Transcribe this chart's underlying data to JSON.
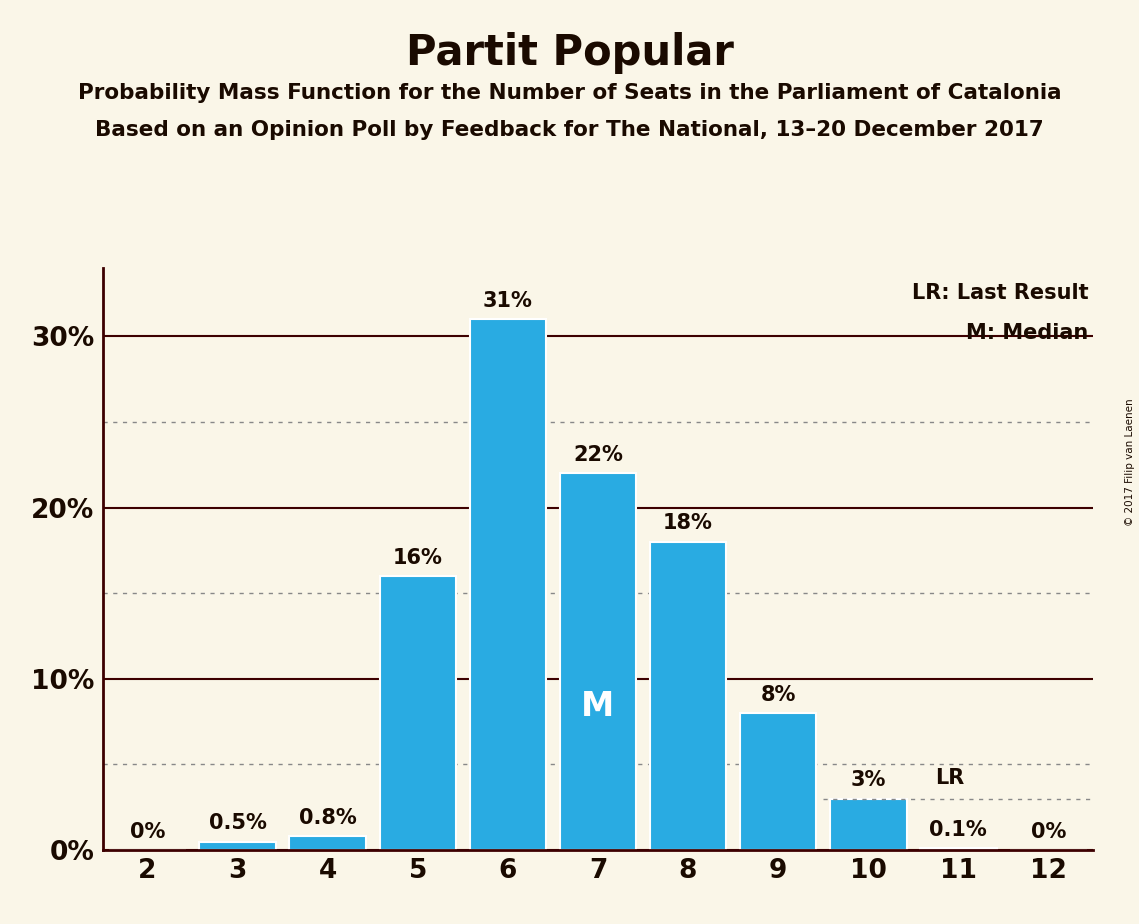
{
  "title": "Partit Popular",
  "subtitle1": "Probability Mass Function for the Number of Seats in the Parliament of Catalonia",
  "subtitle2": "Based on an Opinion Poll by Feedback for The National, 13–20 December 2017",
  "copyright": "© 2017 Filip van Laenen",
  "categories": [
    2,
    3,
    4,
    5,
    6,
    7,
    8,
    9,
    10,
    11,
    12
  ],
  "values": [
    0.0,
    0.5,
    0.8,
    16.0,
    31.0,
    22.0,
    18.0,
    8.0,
    3.0,
    0.1,
    0.0
  ],
  "bar_color": "#29ABE2",
  "bar_edge_color": "#ffffff",
  "background_color": "#faf6e8",
  "text_color": "#1a0a00",
  "axis_color": "#3d0000",
  "grid_solid_color": "#3d0000",
  "grid_dotted_color": "#888888",
  "bar_labels": [
    "0%",
    "0.5%",
    "0.8%",
    "16%",
    "31%",
    "22%",
    "18%",
    "8%",
    "3%",
    "0.1%",
    "0%"
  ],
  "median_seat": 7,
  "median_label": "M",
  "lr_seat": 11,
  "lr_value": 3.0,
  "lr_label": "LR",
  "legend_lr": "LR: Last Result",
  "legend_m": "M: Median",
  "ylim": [
    0,
    34
  ],
  "yticks": [
    0,
    10,
    20,
    30
  ],
  "ytick_labels": [
    "0%",
    "10%",
    "20%",
    "30%"
  ],
  "dotted_gridlines": [
    5,
    15,
    25
  ],
  "title_fontsize": 30,
  "subtitle_fontsize": 15.5,
  "bar_label_fontsize": 15,
  "axis_tick_fontsize": 19,
  "legend_fontsize": 15
}
